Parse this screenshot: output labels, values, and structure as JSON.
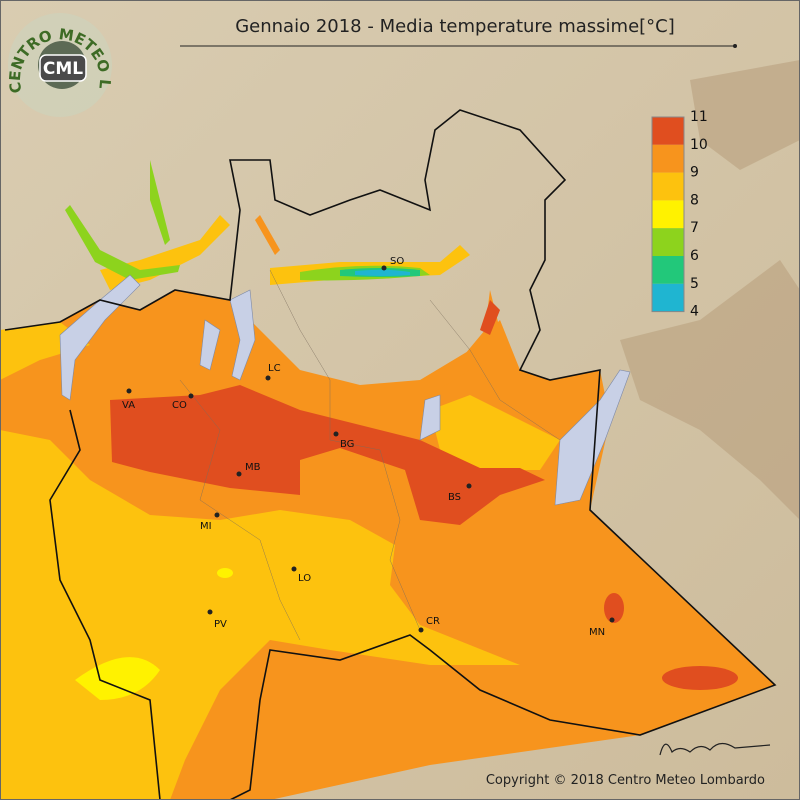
{
  "title": "Gennaio 2018 - Media temperature massime[°C]",
  "logo": {
    "arc_text": "CENTRO METEO LOMBARDO",
    "badge": "CML"
  },
  "legend": {
    "ticks": [
      11,
      10,
      9,
      8,
      7,
      6,
      5,
      4
    ],
    "colors": [
      "#e04e1f",
      "#f7941d",
      "#fdc20e",
      "#fff200",
      "#8dd31d",
      "#22c87a",
      "#1fb5d1"
    ]
  },
  "cities": [
    "SO",
    "LC",
    "VA",
    "CO",
    "BG",
    "MB",
    "BS",
    "MI",
    "LO",
    "PV",
    "CR",
    "MN"
  ],
  "copyright": "Copyright © 2018 Centro Meteo Lombardo"
}
